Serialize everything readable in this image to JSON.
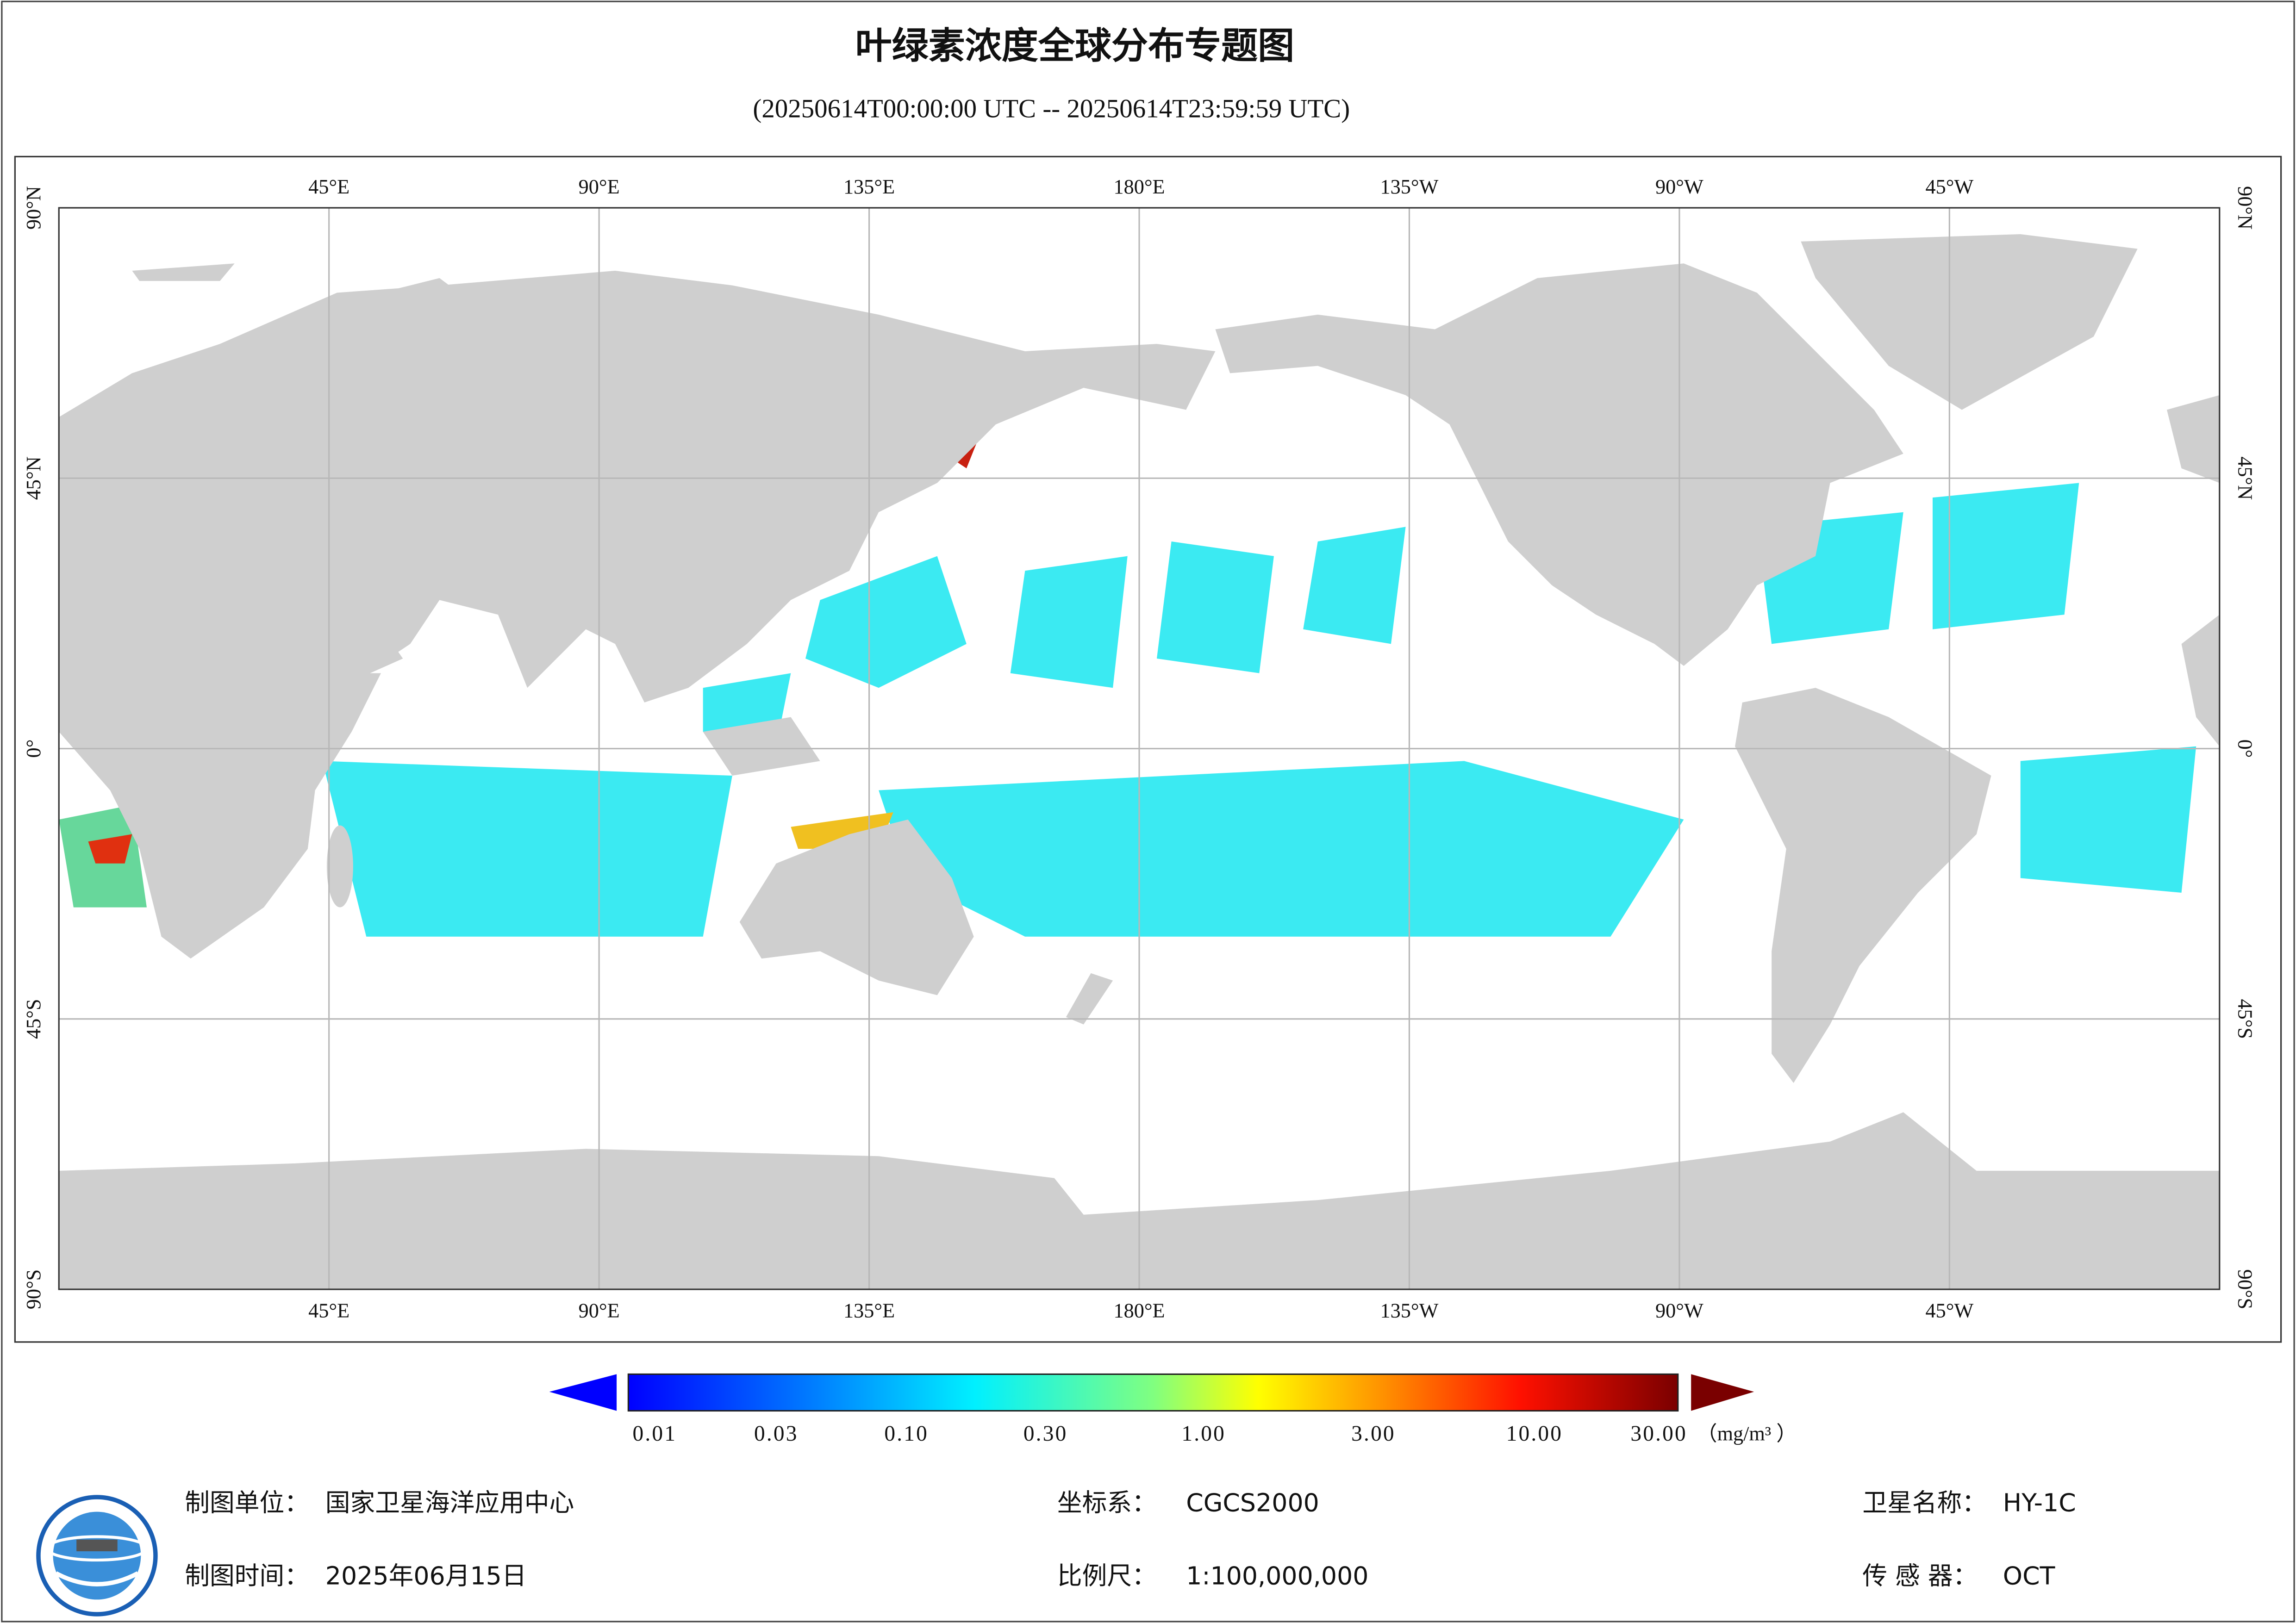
{
  "header": {
    "title": "叶绿素浓度全球分布专题图",
    "subtitle": "(20250614T00:00:00 UTC -- 20250614T23:59:59 UTC)"
  },
  "map": {
    "lon_labels": [
      "45°E",
      "90°E",
      "135°E",
      "180°E",
      "135°W",
      "90°W",
      "45°W"
    ],
    "lat_labels": [
      "90°N",
      "45°N",
      "0°",
      "45°S",
      "90°S"
    ]
  },
  "colorbar": {
    "ticks": [
      "0.01",
      "0.03",
      "0.10",
      "0.30",
      "1.00",
      "3.00",
      "10.00",
      "30.00"
    ],
    "unit": "（mg/m³ ）"
  },
  "footer": {
    "left": [
      {
        "label": "制图单位：",
        "value": "国家卫星海洋应用中心"
      },
      {
        "label": "制图时间：",
        "value": "2025年06月15日"
      }
    ],
    "center": [
      {
        "label": "坐标系：",
        "value": "CGCS2000"
      },
      {
        "label": "比例尺：",
        "value": "1:100,000,000"
      }
    ],
    "right": [
      {
        "label": "卫星名称：",
        "value": "HY-1C"
      },
      {
        "label": "传 感 器：",
        "value": "OCT"
      }
    ]
  }
}
